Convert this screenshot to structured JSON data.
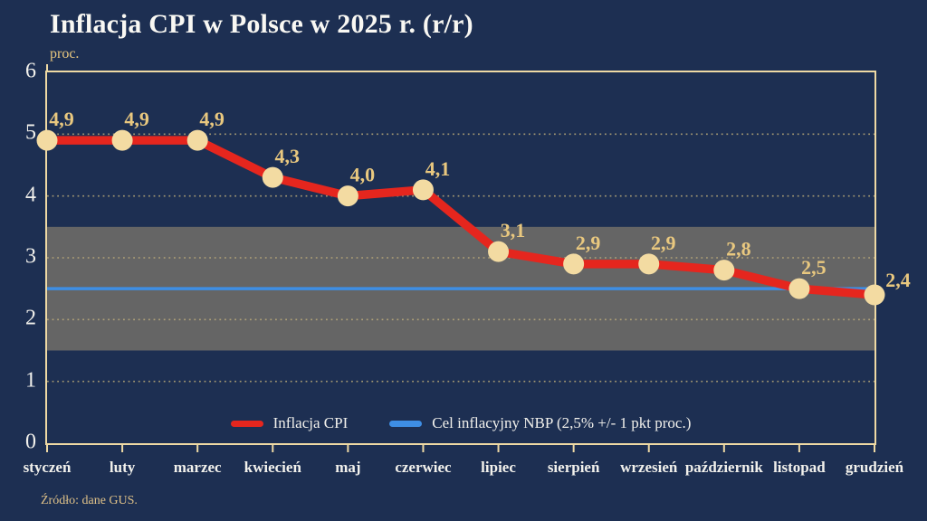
{
  "header": {
    "title": "Inflacja CPI w Polsce w 2025 r. (r/r)",
    "unit": "proc."
  },
  "legend": {
    "cpi_label": "Inflacja CPI",
    "target_label": "Cel inflacyjny NBP (2,5% +/- 1 pkt proc.)"
  },
  "footer": {
    "source": "Źródło: dane GUS."
  },
  "colors": {
    "background": "#1d2f52",
    "frame": "#eed9a4",
    "cpi_line": "#e5261e",
    "marker": "#f3dba2",
    "value_label": "#e9c87f",
    "target_line": "#3e8ee4",
    "target_band": "#656565",
    "gridline": "#c3b17c",
    "text_primary": "#f2f1ec"
  },
  "chart_data": {
    "type": "line",
    "title": "Inflacja CPI w Polsce w 2025 r. (r/r)",
    "ylabel": "proc.",
    "categories": [
      "styczeń",
      "luty",
      "marzec",
      "kwiecień",
      "maj",
      "czerwiec",
      "lipiec",
      "sierpień",
      "wrzesień",
      "październik",
      "listopad",
      "grudzień"
    ],
    "series": [
      {
        "name": "Inflacja CPI",
        "values": [
          4.9,
          4.9,
          4.9,
          4.3,
          4.0,
          4.1,
          3.1,
          2.9,
          2.9,
          2.8,
          2.5,
          2.4
        ]
      }
    ],
    "point_labels": [
      "4,9",
      "4,9",
      "4,9",
      "4,3",
      "4,0",
      "4,1",
      "3,1",
      "2,9",
      "2,9",
      "2,8",
      "2,5",
      "2,4"
    ],
    "target_line": 2.5,
    "target_band": [
      1.5,
      3.5
    ],
    "ylim": [
      0,
      6
    ],
    "yticks": [
      0,
      1,
      2,
      3,
      4,
      5,
      6
    ],
    "grid": "dotted-horizontal",
    "legend_position": "bottom-inside"
  }
}
